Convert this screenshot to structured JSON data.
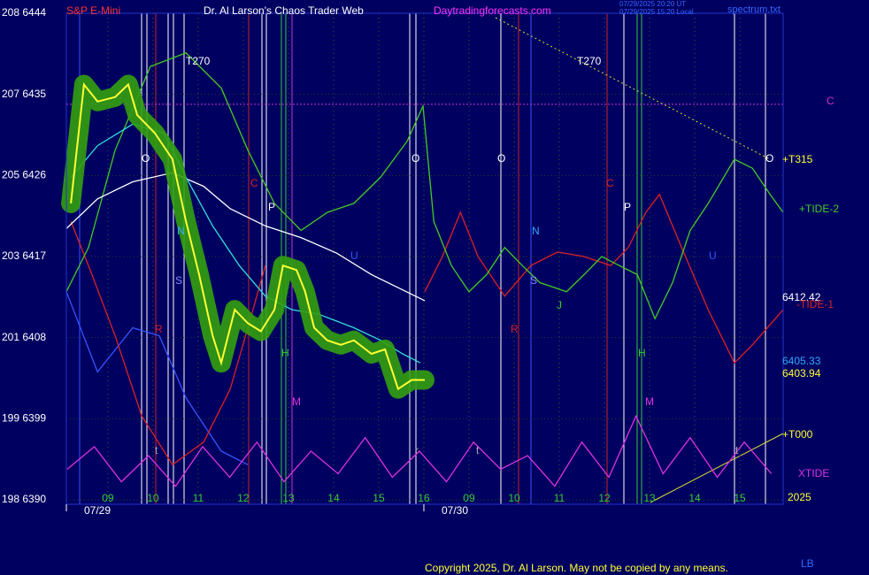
{
  "header": {
    "symbol": "S&P E-Mini",
    "title": "Dr. Al Larson's Chaos Trader Web",
    "site": "Daytradingforecasts.com",
    "stamp_ut": "07/29/2025 20:20 UT",
    "stamp_local": "07/29/2025 15:20 Local",
    "file": "spectrum.txt"
  },
  "footer": {
    "copyright": "Copyright 2025, Dr. Al Larson. May not be copied by any means.",
    "mark": "LB"
  },
  "chart_data": {
    "type": "line",
    "xlim": [
      8.08,
      23.96
    ],
    "ylim": [
      6390,
      6444
    ],
    "yticks": [
      {
        "value": 6444,
        "label": "208  6444"
      },
      {
        "value": 6435,
        "label": "207  6435"
      },
      {
        "value": 6426,
        "label": "205  6426"
      },
      {
        "value": 6417,
        "label": "203  6417"
      },
      {
        "value": 6408,
        "label": "201  6408"
      },
      {
        "value": 6399,
        "label": "199  6399"
      },
      {
        "value": 6390,
        "label": "198  6390"
      }
    ],
    "xticks": [
      {
        "value": 9,
        "label": "09"
      },
      10,
      11,
      12,
      13,
      14,
      15,
      16,
      {
        "value": 17,
        "label": "09"
      },
      {
        "value": 18,
        "label": "10"
      },
      {
        "value": 19,
        "label": "11"
      },
      {
        "value": 20,
        "label": "12"
      },
      {
        "value": 21,
        "label": "13"
      },
      {
        "value": 22,
        "label": "14"
      },
      {
        "value": 23,
        "label": "15"
      }
    ],
    "date_labels": [
      {
        "value": 8.08,
        "label": "07/29"
      },
      {
        "value": 16,
        "label": "07/30"
      }
    ],
    "grid": true,
    "hlines": [
      {
        "value": 6433.9,
        "label": "C",
        "color": "#cc33cc"
      }
    ],
    "series": [
      {
        "color": "#3355ff",
        "x": [
          8.08,
          8.77,
          9.55,
          10.14,
          10.73,
          11.51,
          12.1
        ],
        "values": [
          6413.1,
          6404.2,
          6409.1,
          6408.2,
          6401.3,
          6395.4,
          6393.9
        ]
      },
      {
        "name": "XTIDE",
        "color": "#dd33dd",
        "x": [
          8.1,
          8.7,
          9.3,
          9.9,
          10.5,
          11.1,
          11.7,
          12.3,
          12.9,
          13.5,
          14.1,
          14.7,
          15.3,
          15.9,
          16.5,
          17.1,
          17.7,
          18.3,
          18.9,
          19.5,
          20.1,
          20.7,
          21.3,
          21.9,
          22.5,
          23.1,
          23.7
        ],
        "values": [
          6393.4,
          6395.9,
          6392.0,
          6394.9,
          6391.5,
          6395.9,
          6392.5,
          6396.4,
          6392.0,
          6395.4,
          6392.9,
          6396.9,
          6392.5,
          6395.4,
          6392.0,
          6396.4,
          6393.4,
          6394.9,
          6391.5,
          6396.4,
          6392.5,
          6399.3,
          6392.9,
          6396.9,
          6392.5,
          6396.4,
          6392.9
        ]
      },
      {
        "name": "-TIDE-1",
        "color": "#dd2222",
        "x": [
          8.18,
          8.57,
          9.16,
          9.75,
          10.43,
          11.12,
          11.71,
          12.1,
          12.49,
          13.5,
          16.02,
          16.41,
          16.81,
          17.2,
          17.79,
          18.37,
          18.96,
          19.55,
          20.14,
          20.53,
          20.92,
          21.22,
          21.71,
          22.3,
          22.88,
          23.28,
          23.96
        ],
        "values": [
          6420.9,
          6416.0,
          6408.2,
          6399.3,
          6393.9,
          6396.4,
          6402.3,
          6409.1,
          6416.0,
          null,
          6413.1,
          6417.0,
          6421.9,
          6417.0,
          6412.6,
          6416.0,
          6417.5,
          6417.0,
          6416.0,
          6418.0,
          6421.9,
          6423.9,
          6418.0,
          6411.1,
          6405.2,
          6407.2,
          6411.1
        ]
      },
      {
        "name": "+TIDE-2",
        "color": "#44cc22",
        "x": [
          8.08,
          8.57,
          9.16,
          9.94,
          10.73,
          11.51,
          12.1,
          12.69,
          13.28,
          13.86,
          14.45,
          15.04,
          15.63,
          15.98,
          16.22,
          16.61,
          17.0,
          17.39,
          17.79,
          18.18,
          18.57,
          19.16,
          19.55,
          19.94,
          20.33,
          20.73,
          21.12,
          21.51,
          21.9,
          22.3,
          22.88,
          23.28,
          23.67,
          23.96
        ],
        "values": [
          6413.1,
          6418.0,
          6428.8,
          6438.1,
          6439.6,
          6435.7,
          6428.8,
          6422.9,
          6419.9,
          6421.9,
          6422.9,
          6425.8,
          6429.8,
          6433.7,
          6420.9,
          6416.0,
          6413.1,
          6415.0,
          6418.0,
          6416.0,
          6414.1,
          6413.1,
          6415.0,
          6417.0,
          6416.0,
          6415.0,
          6410.1,
          6414.1,
          6419.9,
          6422.9,
          6427.8,
          6426.8,
          6423.9,
          6421.9
        ]
      },
      {
        "color": "#ffffff",
        "x": [
          8.08,
          8.77,
          9.55,
          10.43,
          11.12,
          11.71,
          12.49,
          13.28,
          14.06,
          14.84,
          16.02
        ],
        "values": [
          6420.1,
          6423.4,
          6425.3,
          6426.3,
          6424.8,
          6422.3,
          6420.4,
          6419.1,
          6417.4,
          6415.0,
          6412.1
        ]
      },
      {
        "color": "#33dddd",
        "x": [
          8.18,
          8.77,
          9.55,
          10.24,
          10.73,
          11.32,
          11.91,
          12.49,
          13.08,
          13.67,
          14.45,
          15.04,
          15.53,
          15.92
        ],
        "values": [
          6425.8,
          6429.3,
          6431.7,
          6430.7,
          6425.8,
          6420.4,
          6416.0,
          6412.6,
          6411.1,
          6410.6,
          6409.1,
          6407.7,
          6406.2,
          6405.2
        ]
      },
      {
        "color": "#ffff33",
        "glow_color": "#33a010",
        "x": [
          8.18,
          8.47,
          8.77,
          9.16,
          9.45,
          9.65,
          10.04,
          10.43,
          10.73,
          11.02,
          11.32,
          11.51,
          11.81,
          12.1,
          12.39,
          12.69,
          12.88,
          13.18,
          13.37,
          13.57,
          13.86,
          14.16,
          14.45,
          14.84,
          15.14,
          15.43,
          15.73,
          16.02
        ],
        "values": [
          6422.9,
          6436.1,
          6434.2,
          6434.7,
          6436.1,
          6432.7,
          6430.7,
          6427.8,
          6420.9,
          6415.0,
          6408.2,
          6405.2,
          6411.1,
          6409.6,
          6408.7,
          6411.1,
          6416.0,
          6415.5,
          6413.1,
          6409.1,
          6407.7,
          6407.2,
          6407.7,
          6406.2,
          6406.7,
          6402.3,
          6403.3,
          6403.3
        ]
      }
    ],
    "markers": [
      "O",
      "O",
      "O",
      "O",
      "C",
      "C",
      "P",
      "P",
      "N",
      "N",
      "S",
      "S",
      "R",
      "R",
      "H",
      "H",
      "M",
      "M",
      "J",
      "U",
      "U",
      "T270",
      "T270",
      "t",
      "t",
      "t",
      "r"
    ],
    "right_labels": [
      "+T315",
      "6412.42",
      "6405.33",
      "6403.94",
      "+T000",
      "2025"
    ]
  }
}
